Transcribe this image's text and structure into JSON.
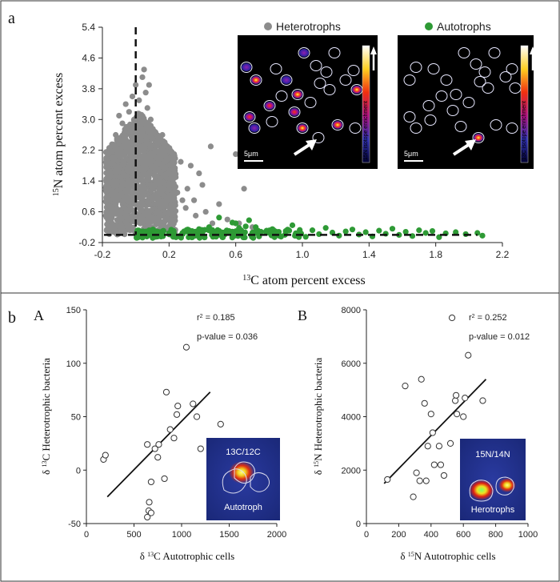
{
  "panel_labels": {
    "a": "a",
    "b": "b",
    "A": "A",
    "B": "B"
  },
  "chart_data": [
    {
      "type": "scatter",
      "panel": "a",
      "xlabel": "13C atom percent excess",
      "xlabel_sup": "13",
      "xlabel_rest": "C atom percent excess",
      "ylabel_sup": "15",
      "ylabel_rest": "N atom percent excess",
      "xlim": [
        -0.2,
        2.2
      ],
      "ylim": [
        -0.2,
        5.4
      ],
      "xticks": [
        "-0.2",
        "0.2",
        "0.6",
        "1.0",
        "1.4",
        "1.8",
        "2.2"
      ],
      "yticks": [
        "-0.2",
        "0.6",
        "1.4",
        "2.2",
        "3.0",
        "3.8",
        "4.6",
        "5.4"
      ],
      "reference_lines": {
        "x": 0,
        "y": 0
      },
      "series": [
        {
          "name": "Heterotrophs",
          "color": "#8c8c8c",
          "points": [
            [
              -0.18,
              0.5
            ],
            [
              -0.16,
              1.2
            ],
            [
              -0.14,
              2.0
            ],
            [
              -0.12,
              2.6
            ],
            [
              -0.1,
              3.1
            ],
            [
              -0.08,
              2.9
            ],
            [
              -0.06,
              3.4
            ],
            [
              -0.04,
              3.2
            ],
            [
              -0.02,
              3.6
            ],
            [
              0.0,
              3.9
            ],
            [
              0.02,
              3.5
            ],
            [
              0.04,
              4.1
            ],
            [
              0.05,
              4.3
            ],
            [
              0.07,
              3.3
            ],
            [
              0.09,
              3.0
            ],
            [
              0.11,
              2.7
            ],
            [
              0.13,
              2.4
            ],
            [
              0.15,
              2.2
            ],
            [
              0.18,
              1.9
            ],
            [
              0.2,
              1.6
            ],
            [
              0.22,
              1.3
            ],
            [
              0.25,
              1.1
            ],
            [
              0.28,
              0.9
            ],
            [
              0.3,
              0.7
            ],
            [
              0.33,
              1.8
            ],
            [
              0.36,
              0.5
            ],
            [
              0.4,
              1.3
            ],
            [
              0.45,
              2.3
            ],
            [
              0.5,
              0.8
            ],
            [
              0.55,
              0.4
            ],
            [
              0.6,
              2.1
            ],
            [
              0.62,
              0.3
            ],
            [
              0.65,
              1.2
            ],
            [
              0.7,
              0.2
            ],
            [
              0.06,
              3.7
            ],
            [
              0.08,
              3.9
            ],
            [
              -0.01,
              3.0
            ],
            [
              0.03,
              2.8
            ],
            [
              0.1,
              2.5
            ],
            [
              0.16,
              2.6
            ],
            [
              0.19,
              2.3
            ],
            [
              0.24,
              1.5
            ],
            [
              0.27,
              1.9
            ],
            [
              0.31,
              1.2
            ],
            [
              0.35,
              0.9
            ],
            [
              0.38,
              1.6
            ],
            [
              0.42,
              0.6
            ],
            [
              0.46,
              0.3
            ],
            [
              0.12,
              1.8
            ],
            [
              0.14,
              1.4
            ]
          ],
          "cloud": {
            "x_range": [
              -0.18,
              0.24
            ],
            "y_range": [
              0.0,
              3.2
            ],
            "n": 1500
          }
        },
        {
          "name": "Autotrophs",
          "color": "#2e9a35",
          "points": [
            [
              0.02,
              0.05
            ],
            [
              0.08,
              0.0
            ],
            [
              0.12,
              -0.05
            ],
            [
              0.16,
              0.08
            ],
            [
              0.2,
              0.02
            ],
            [
              0.24,
              -0.03
            ],
            [
              0.28,
              0.05
            ],
            [
              0.32,
              0.12
            ],
            [
              0.36,
              -0.02
            ],
            [
              0.4,
              0.06
            ],
            [
              0.44,
              0.2
            ],
            [
              0.48,
              0.04
            ],
            [
              0.52,
              -0.06
            ],
            [
              0.56,
              0.1
            ],
            [
              0.6,
              0.3
            ],
            [
              0.64,
              0.02
            ],
            [
              0.66,
              0.22
            ],
            [
              0.7,
              0.06
            ],
            [
              0.74,
              -0.04
            ],
            [
              0.78,
              0.08
            ],
            [
              0.82,
              0.15
            ],
            [
              0.86,
              0.0
            ],
            [
              0.9,
              0.1
            ],
            [
              0.94,
              0.25
            ],
            [
              0.98,
              0.04
            ],
            [
              1.02,
              -0.05
            ],
            [
              1.06,
              0.12
            ],
            [
              1.1,
              0.02
            ],
            [
              1.14,
              0.18
            ],
            [
              1.18,
              0.06
            ],
            [
              1.22,
              -0.02
            ],
            [
              1.26,
              0.09
            ],
            [
              1.3,
              0.14
            ],
            [
              1.34,
              0.01
            ],
            [
              1.38,
              0.07
            ],
            [
              1.42,
              -0.04
            ],
            [
              1.46,
              0.11
            ],
            [
              1.5,
              0.03
            ],
            [
              1.54,
              0.16
            ],
            [
              1.58,
              0.0
            ],
            [
              1.62,
              0.08
            ],
            [
              1.66,
              -0.03
            ],
            [
              1.7,
              0.12
            ],
            [
              1.74,
              0.05
            ],
            [
              1.78,
              0.1
            ],
            [
              1.82,
              -0.06
            ],
            [
              1.86,
              0.04
            ],
            [
              1.92,
              0.07
            ],
            [
              1.98,
              0.02
            ],
            [
              2.05,
              0.05
            ],
            [
              2.08,
              -0.02
            ],
            [
              0.5,
              0.45
            ],
            [
              0.58,
              0.32
            ],
            [
              0.68,
              0.38
            ],
            [
              0.62,
              0.18
            ],
            [
              0.72,
              0.2
            ],
            [
              0.45,
              0.1
            ],
            [
              0.38,
              0.15
            ]
          ],
          "band": {
            "x_range": [
              0.0,
              1.0
            ],
            "y_range": [
              -0.08,
              0.14
            ],
            "n": 180
          }
        }
      ]
    },
    {
      "type": "scatter",
      "panel": "b-A",
      "xlabel": "δ 13C Autotrophic cells",
      "xlabel_pre": "δ ",
      "xlabel_sup": "13",
      "xlabel_rest": "C Autotrophic cells",
      "ylabel_pre": "δ ",
      "ylabel_sup": "13",
      "ylabel_rest": "C Heterotrophic bacteria",
      "xlim": [
        0,
        2000
      ],
      "ylim": [
        -50,
        150
      ],
      "xticks": [
        "0",
        "500",
        "1000",
        "1500",
        "2000"
      ],
      "yticks": [
        "-50",
        "0",
        "50",
        "100",
        "150"
      ],
      "r2": "0.185",
      "pvalue": "0.036",
      "points": [
        [
          180,
          10
        ],
        [
          200,
          14
        ],
        [
          640,
          -44
        ],
        [
          655,
          -38
        ],
        [
          660,
          -30
        ],
        [
          680,
          -11
        ],
        [
          680,
          -40
        ],
        [
          720,
          20
        ],
        [
          750,
          12
        ],
        [
          760,
          24
        ],
        [
          820,
          -8
        ],
        [
          840,
          73
        ],
        [
          880,
          38
        ],
        [
          920,
          30
        ],
        [
          950,
          52
        ],
        [
          960,
          60
        ],
        [
          1050,
          115
        ],
        [
          1120,
          62
        ],
        [
          1160,
          50
        ],
        [
          1200,
          20
        ],
        [
          1410,
          43
        ],
        [
          640,
          24
        ]
      ],
      "fit": [
        [
          220,
          -25
        ],
        [
          1300,
          73
        ]
      ]
    },
    {
      "type": "scatter",
      "panel": "b-B",
      "xlabel": "δ 15N Autotrophic cells",
      "xlabel_pre": "δ ",
      "xlabel_sup": "15",
      "xlabel_rest": "N Autotrophic cells",
      "ylabel_pre": "δ ",
      "ylabel_sup": "15",
      "ylabel_rest": "N Heterotrophic bacteria",
      "xlim": [
        0,
        1000
      ],
      "ylim": [
        0,
        8000
      ],
      "xticks": [
        "0",
        "200",
        "400",
        "600",
        "800",
        "1000"
      ],
      "yticks": [
        "0",
        "2000",
        "4000",
        "6000",
        "8000"
      ],
      "r2": "0.252",
      "pvalue": "0.012",
      "points": [
        [
          130,
          1650
        ],
        [
          240,
          5150
        ],
        [
          290,
          1000
        ],
        [
          310,
          1900
        ],
        [
          330,
          1600
        ],
        [
          340,
          5400
        ],
        [
          360,
          4500
        ],
        [
          370,
          1600
        ],
        [
          380,
          2900
        ],
        [
          400,
          4100
        ],
        [
          410,
          3400
        ],
        [
          420,
          2200
        ],
        [
          450,
          2900
        ],
        [
          460,
          2200
        ],
        [
          480,
          1800
        ],
        [
          520,
          3000
        ],
        [
          530,
          7700
        ],
        [
          550,
          4600
        ],
        [
          555,
          4800
        ],
        [
          560,
          4100
        ],
        [
          600,
          4000
        ],
        [
          610,
          4700
        ],
        [
          630,
          6300
        ],
        [
          720,
          4600
        ]
      ],
      "fit": [
        [
          110,
          1500
        ],
        [
          740,
          5400
        ]
      ]
    }
  ],
  "legend": {
    "heterotrophs": "Heterotrophs",
    "autotrophs": "Autotrophs",
    "heterotrophs_color": "#8c8c8c",
    "autotrophs_color": "#2e9a35"
  },
  "micrographs": {
    "n15_colorbar": "15N isotope enrichment",
    "c13_colorbar": "13C isotope enrichment",
    "scale_bar": "5μm"
  },
  "insets": {
    "left_ratio": "13C/12C",
    "left_label": "Autotroph",
    "right_ratio": "15N/14N",
    "right_label": "Herotrophs"
  },
  "stat_labels": {
    "r2_prefix": "r",
    "r2_sup": "2",
    "eq": " = ",
    "p_prefix": "p-value = "
  }
}
